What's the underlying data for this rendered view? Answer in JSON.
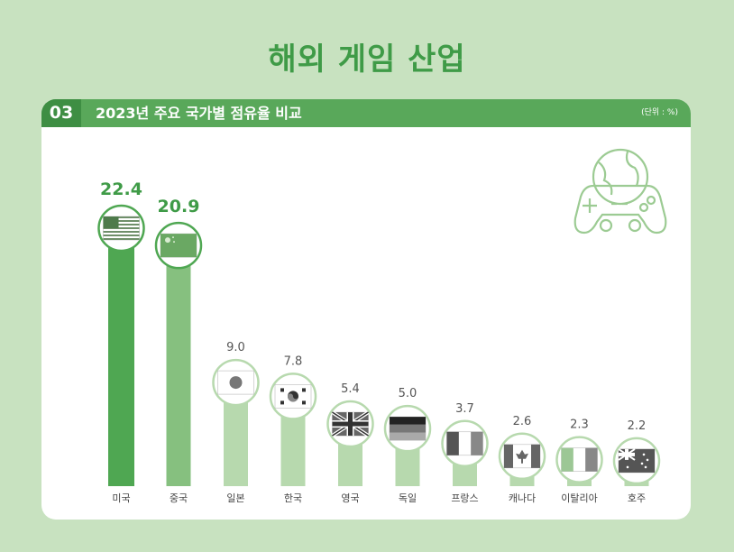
{
  "page": {
    "title": "해외 게임 산업"
  },
  "header": {
    "number": "03",
    "title": "2023년 주요 국가별 점유율 비교",
    "unit": "(단위 : %)"
  },
  "icons": {
    "decoration": "gamepad-globe-icon"
  },
  "colors": {
    "background": "#c8e2c0",
    "accent": "#59a85a",
    "accent_dark": "#3e8e43",
    "bar_primary": "#4fa752",
    "bar_secondary": "#86c07f",
    "bar_light": "#b7d9ae",
    "highlight_label": "#3f9b47",
    "label": "#555555"
  },
  "chart_data": {
    "type": "bar",
    "categories": [
      "미국",
      "중국",
      "일본",
      "한국",
      "영국",
      "독일",
      "프랑스",
      "캐나다",
      "이탈리아",
      "호주"
    ],
    "values": [
      22.4,
      20.9,
      9.0,
      7.8,
      5.4,
      5.0,
      3.7,
      2.6,
      2.3,
      2.2
    ],
    "value_labels": [
      "22.4",
      "20.9",
      "9.0",
      "7.8",
      "5.4",
      "5.0",
      "3.7",
      "2.6",
      "2.3",
      "2.2"
    ],
    "flags": [
      "us-flag-icon",
      "cn-flag-icon",
      "jp-flag-icon",
      "kr-flag-icon",
      "uk-flag-icon",
      "de-flag-icon",
      "fr-flag-icon",
      "ca-flag-icon",
      "it-flag-icon",
      "au-flag-icon"
    ],
    "ylim": [
      0,
      25
    ],
    "grid": false,
    "legend": "none"
  }
}
